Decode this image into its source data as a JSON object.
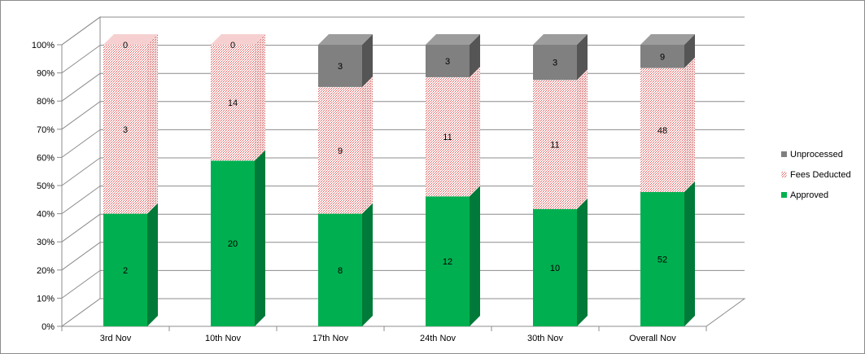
{
  "chart_data": {
    "type": "bar",
    "stacked": "percent",
    "style": "3d-column",
    "categories": [
      "3rd Nov",
      "10th Nov",
      "17th Nov",
      "24th Nov",
      "30th Nov",
      "Overall Nov"
    ],
    "series": [
      {
        "name": "Approved",
        "values": [
          2,
          20,
          8,
          12,
          10,
          52
        ],
        "color": "#00b050",
        "side_color": "#007a38"
      },
      {
        "name": "Fees Deducted",
        "values": [
          3,
          14,
          9,
          11,
          11,
          48
        ],
        "color": "#ffffff",
        "pattern_color": "#e05a5a",
        "side_color": "#f2c4c4"
      },
      {
        "name": "Unprocessed",
        "values": [
          0,
          0,
          3,
          3,
          3,
          9
        ],
        "color": "#808080",
        "side_color": "#555555"
      }
    ],
    "y_ticks": [
      "0%",
      "10%",
      "20%",
      "30%",
      "40%",
      "50%",
      "60%",
      "70%",
      "80%",
      "90%",
      "100%"
    ],
    "ylim": [
      0,
      100
    ],
    "grid": true,
    "legend_position": "right",
    "legend_order": [
      "Unprocessed",
      "Fees Deducted",
      "Approved"
    ],
    "title": "",
    "xlabel": "",
    "ylabel": ""
  }
}
